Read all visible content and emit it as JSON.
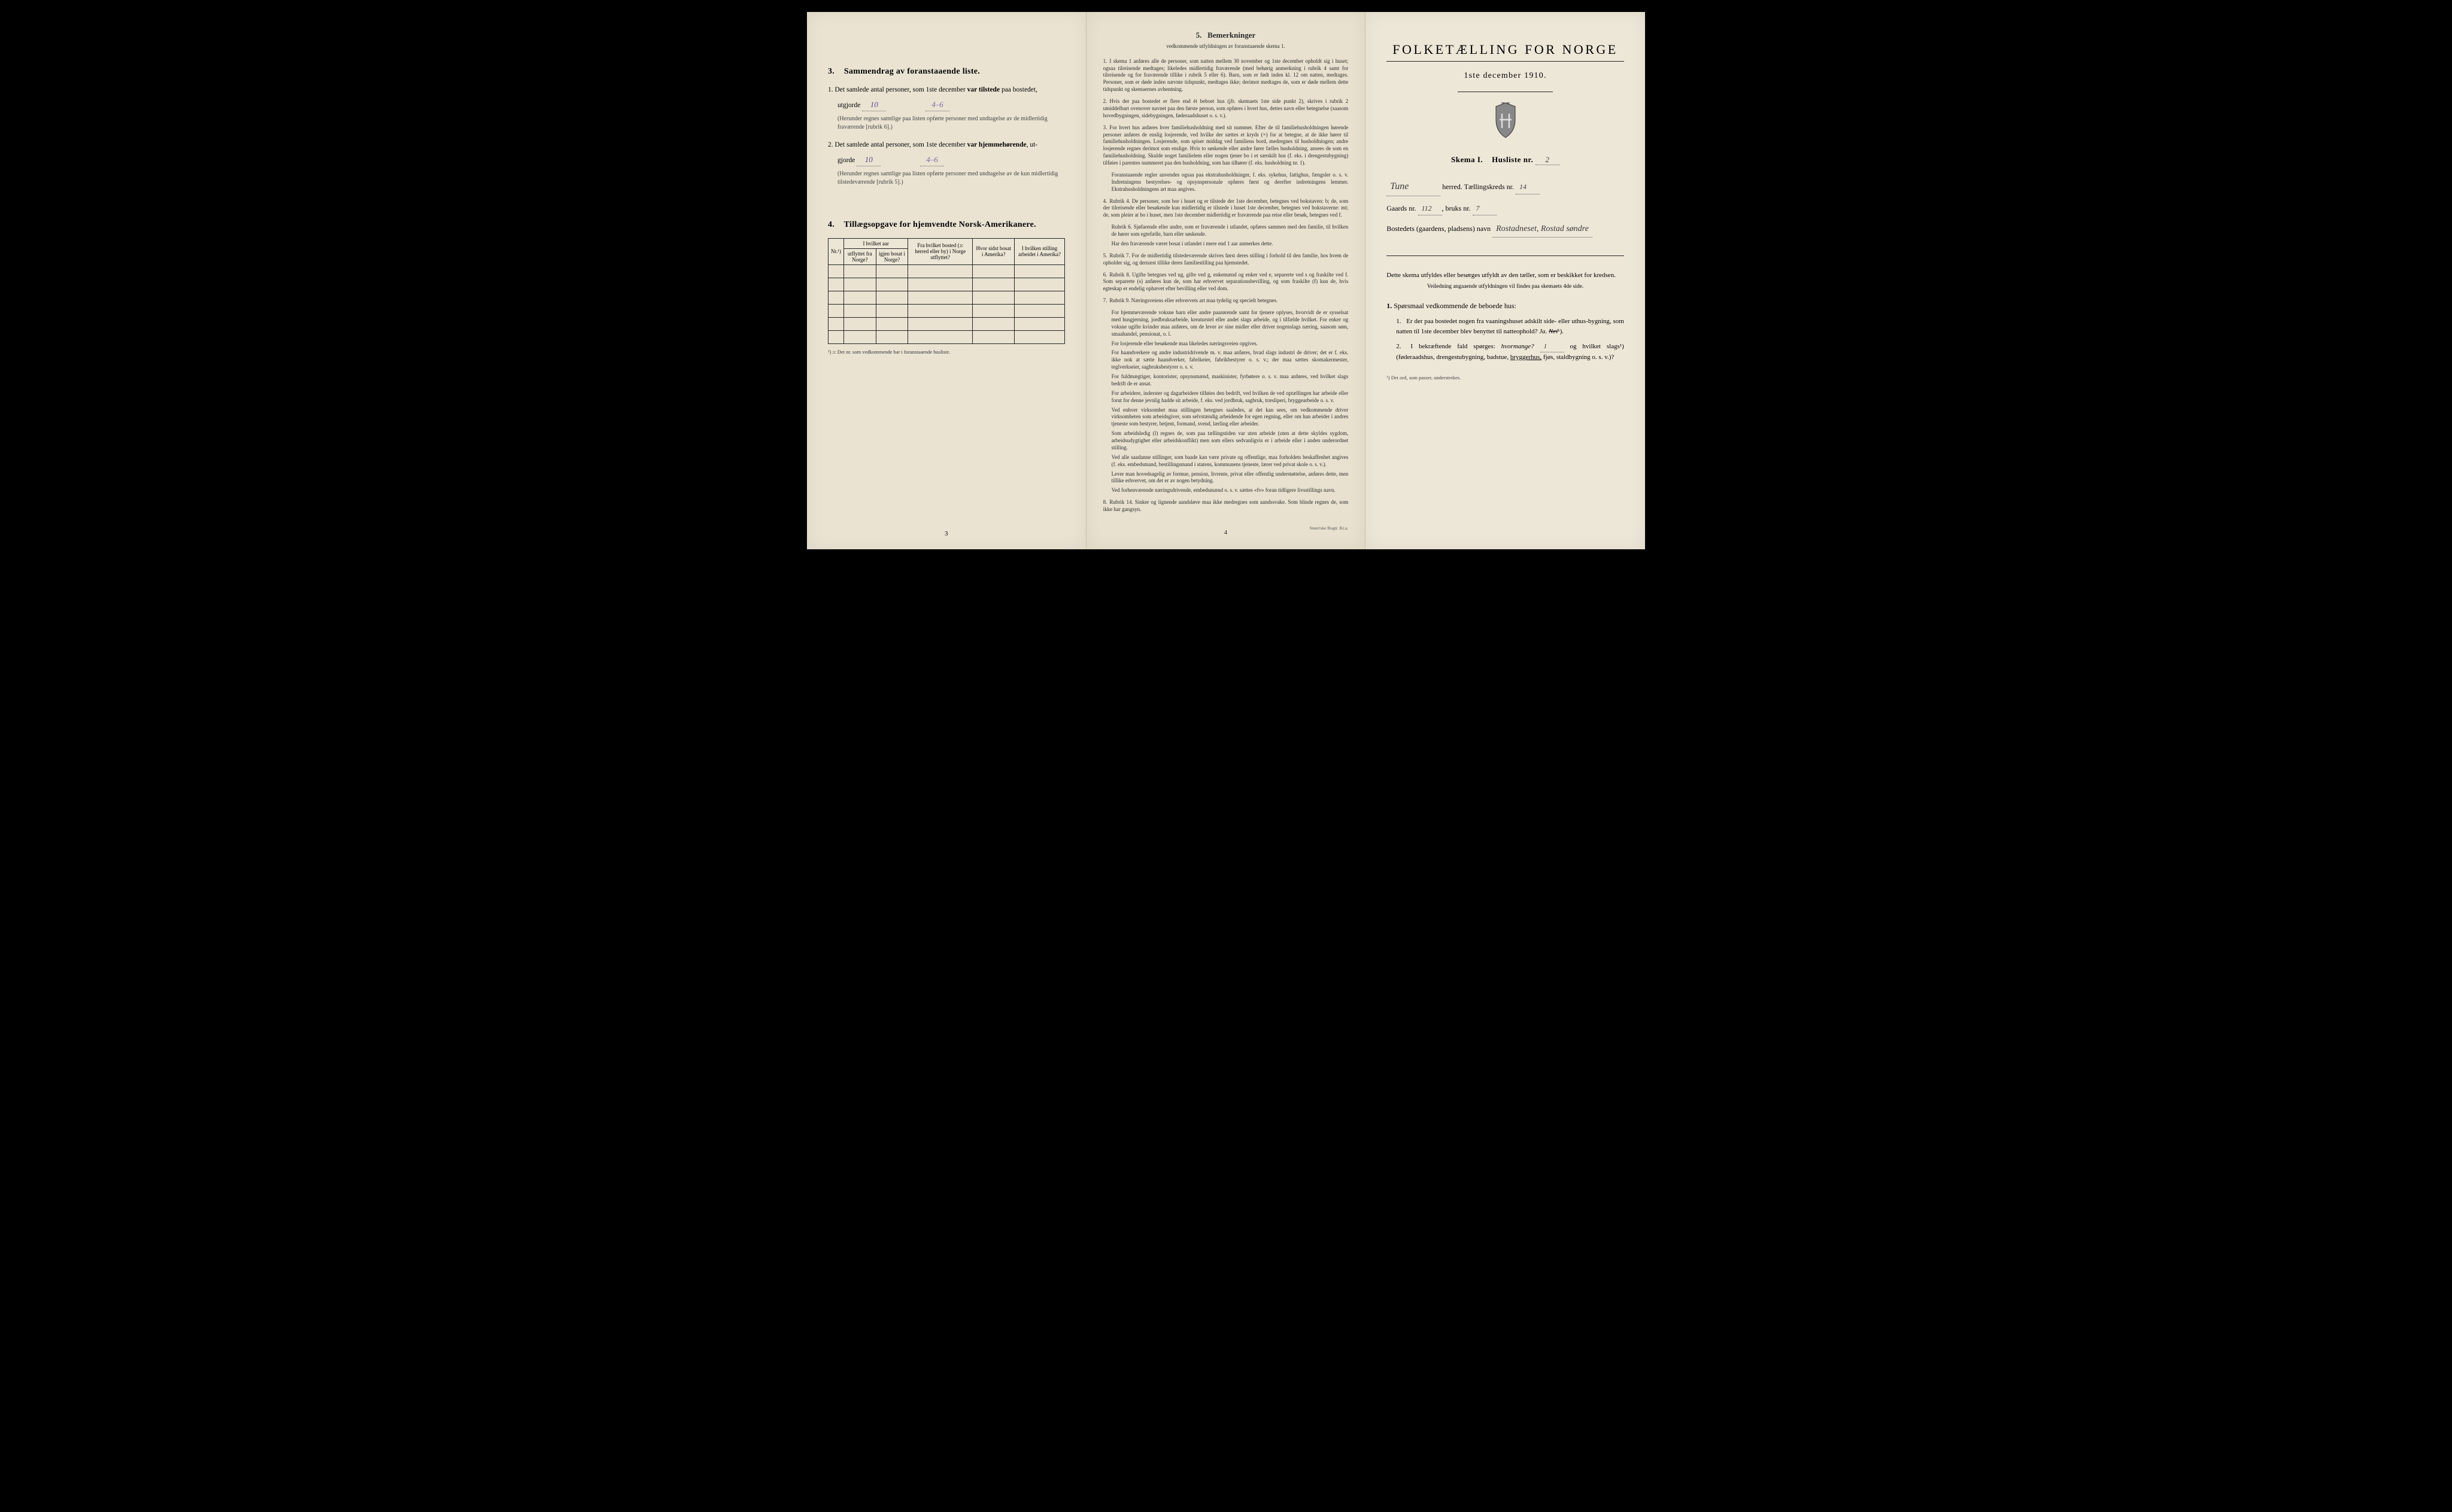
{
  "left": {
    "section3": {
      "num": "3.",
      "title": "Sammendrag av foranstaaende liste.",
      "item1_prefix": "1.  Det samlede antal personer, som 1ste december",
      "item1_bold": "var tilstede",
      "item1_suffix": "paa bostedet,",
      "utgjorde_label": "utgjorde",
      "value1": "10",
      "value1b": "4–6",
      "paren1": "(Herunder regnes samtlige paa listen opførte personer med undtagelse av de midlertidig fraværende [rubrik 6].)",
      "item2_prefix": "2.  Det samlede antal personer, som 1ste december",
      "item2_bold": "var hjemmehørende",
      "item2_suffix": ", ut-",
      "utgjorde_label2": "gjorde",
      "value2": "10",
      "value2b": "4–6",
      "paren2": "(Herunder regnes samtlige paa listen opførte personer med undtagelse av de kun midlertidig tilstedeværende [rubrik 5].)"
    },
    "section4": {
      "num": "4.",
      "title": "Tillægsopgave for hjemvendte Norsk-Amerikanere.",
      "th_nr": "Nr.¹)",
      "th_group": "I hvilket aar",
      "th_utflyttet": "utflyttet fra Norge?",
      "th_igjen": "igjen bosat i Norge?",
      "th_bosted": "Fra hvilket bosted (ɔ: herred eller by) i Norge utflyttet?",
      "th_sidst": "Hvor sidst bosat i Amerika?",
      "th_stilling": "I hvilken stilling arbeidet i Amerika?",
      "footnote": "¹) ɔ: Det nr. som vedkommende har i foranstaaende husliste.",
      "row_count": 6
    },
    "pagenum": "3"
  },
  "middle": {
    "title_num": "5.",
    "title": "Bemerkninger",
    "subtitle": "vedkommende utfyldningen av foranstaaende skema 1.",
    "items": [
      "I skema 1 anføres alle de personer, som natten mellem 30 november og 1ste december opholdt sig i huset; ogsaa tilreisende medtages; likeledes midlertidig fraværende (med behørig anmerkning i rubrik 4 samt for tilreisende og for fraværende tillike i rubrik 5 eller 6). Barn, som er født inden kl. 12 om natten, medtages. Personer, som er døde inden nævnte tidspunkt, medtages ikke; derimot medtages de, som er døde mellem dette tidspunkt og skemaernes avhentning.",
      "Hvis der paa bostedet er flere end ét beboet hus (jfr. skemaets 1ste side punkt 2), skrives i rubrik 2 umiddelbart ovenover navnet paa den første person, som opføres i hvert hus, dettes navn eller betegnelse (saasom hovedbygningen, sidebygningen, føderaadshuset o. s. v.).",
      "For hvert hus anføres hver familiehusholdning med sit nummer. Efter de til familiehusholdningen hørende personer anføres de enslig losjerende, ved hvilke der sættes et kryds (×) for at betegne, at de ikke hører til familiehusholdningen. Losjerende, som spiser middag ved familiens bord, medregnes til husholdningen; andre losjerende regnes derimot som enslige. Hvis to søskende eller andre fører fælles husholdning, ansees de som en familiehusholdning. Skulde noget familielem eller nogen tjener bo i et særskilt hus (f. eks. i drengestubygning) tilføies i parentes nummeret paa den husholdning, som han tilhører (f. eks. husholdning nr. 1).",
      "Rubrik 4. De personer, som bor i huset og er tilstede der 1ste december, betegnes ved bokstaven: b; de, som der tilreisende eller besøkende kun midlertidig er tilstede i huset 1ste december, betegnes ved bokstaverne: mt; de, som pleier at bo i huset, men 1ste december midlertidig er fraværende paa reise eller besøk, betegnes ved f.",
      "Rubrik 7. For de midlertidig tilstedeværende skrives først deres stilling i forhold til den familie, hos hvem de opholder sig, og dernæst tillike deres familiestilling paa hjemstedet.",
      "Rubrik 8. Ugifte betegnes ved ug, gifte ved g, enkemænd og enker ved e, separerte ved s og fraskilte ved f. Som separerte (s) anføres kun de, som har erhvervet separationsbevilling, og som fraskilte (f) kun de, hvis egteskap er endelig ophævet efter bevilling eller ved dom.",
      "Rubrik 9. Næringsveiens eller erhvervets art maa tydelig og specielt betegnes.",
      "Rubrik 14. Sinker og lignende aandsløve maa ikke medregnes som aandssvake. Som blinde regnes de, som ikke har gangsyn."
    ],
    "sub3": "Foranstaaende regler anvendes ogsaa paa ekstrahusholdninger, f. eks. sykehus, fattighus, fængsler o. s. v. Indretningens bestyrelses- og opsynspersonale opføres først og derefter indretningens lemmer. Ekstrahusholdningens art maa angives.",
    "sub4a": "Rubrik 6. Sjøfarende eller andre, som er fraværende i utlandet, opføres sammen med den familie, til hvilken de hører som egtefælle, barn eller søskende.",
    "sub4b": "Har den fraværende været bosat i utlandet i mere end 1 aar anmerkes dette.",
    "sub7a": "For hjemmeværende voksne barn eller andre paarørende samt for tjenere oplyses, hvorvidt de er sysselsat med husgjerning, jordbruksarbeide, kreaturstel eller andet slags arbeide, og i tilfælde hvilket. For enker og voksne ugifte kvinder maa anføres, om de lever av sine midler eller driver nogenslags næring, saasom søm, smaahandel, pensionat, o. l.",
    "sub7b": "For losjerende eller besøkende maa likeledes næringsveien opgives.",
    "sub7c": "For haandverkere og andre industridrivende m. v. maa anføres, hvad slags industri de driver; det er f. eks. ikke nok at sætte haandverker, fabrikeier, fabrikbestyrer o. s. v.; der maa sættes skomakermester, teglverkseier, sagbruksbestyrer o. s. v.",
    "sub7d": "For fuldmægtiger, kontorister, opsynsmænd, maskinister, fyrbøtere o. s. v. maa anføres, ved hvilket slags bedrift de er ansat.",
    "sub7e": "For arbeidere, inderster og dagarbeidere tilføies den bedrift, ved hvilken de ved optællingen har arbeide eller forut for denne jevnlig hadde sit arbeide, f. eks. ved jordbruk, sagbruk, træsliperi, bryggearbeide o. s. v.",
    "sub7f": "Ved enhver virksomhet maa stillingen betegnes saaledes, at det kan sees, om vedkommende driver virksomheten som arbeidsgiver, som selvstændig arbeidende for egen regning, eller om han arbeider i andres tjeneste som bestyrer, betjent, formand, svend, lærling eller arbeider.",
    "sub7g": "Som arbeidsledig (l) regnes de, som paa tællingstiden var uten arbeide (uten at dette skyldes sygdom, arbeidsudygtighet eller arbeidskonflikt) men som ellers sedvanligvis er i arbeide eller i anden underordnet stilling.",
    "sub7h": "Ved alle saadanne stillinger, som baade kan være private og offentlige, maa forholdets beskaffenhet angives (f. eks. embedsmand, bestillingsmand i statens, kommunens tjeneste, lærer ved privat skole o. s. v.).",
    "sub7i": "Lever man hovedsagelig av formue, pension, livrente, privat eller offentlig understøttelse, anføres dette, men tillike erhvervet, om det er av nogen betydning.",
    "sub7j": "Ved forhenværende næringsdrivende, embedsmænd o. s. v. sættes «fv» foran tidligere livsstillings navn.",
    "pagenum": "4",
    "printer": "Steen'ske Bogtr. Kr.a."
  },
  "right": {
    "title": "FOLKETÆLLING FOR NORGE",
    "date": "1ste december 1910.",
    "skema_left": "Skema I.",
    "skema_right": "Husliste nr.",
    "husliste_nr": "2",
    "herred_value": "Tune",
    "herred_label": "herred.   Tællingskreds nr.",
    "kreds_nr": "14",
    "gaard_label": "Gaards nr.",
    "gaard_nr": "112",
    "bruks_label": "bruks nr.",
    "bruks_nr": "7",
    "bosted_label": "Bostedets (gaardens, pladsens) navn",
    "bosted_value": "Rostadneset, Rostad søndre",
    "instruct": "Dette skema utfyldes eller besørges utfyldt av den tæller, som er beskikket for kredsen.",
    "instruct_sub": "Veiledning angaaende utfyldningen vil findes paa skemaets 4de side.",
    "q_head_num": "1.",
    "q_head": "Spørsmaal vedkommende de beboede hus:",
    "q1_num": "1.",
    "q1_text_a": "Er der paa bostedet nogen fra vaaningshuset adskilt side- eller uthus-bygning, som natten til 1ste december blev benyttet til natteophold?",
    "q1_ja": "Ja.",
    "q1_nei": "Nei",
    "q1_sup": "¹).",
    "q2_num": "2.",
    "q2_text_a": "I bekræftende fald spørges:",
    "q2_hvormange": "hvormange?",
    "q2_hvormange_val": "1",
    "q2_text_b": "og hvilket slags¹) (føderaadshus, drengestubygning, badstue,",
    "q2_underline": "bryggerhus,",
    "q2_text_c": "fjøs, staldbygning o. s. v.)?",
    "footnote": "¹) Det ord, som passer, understrekes."
  },
  "colors": {
    "paper": "#ece6d6",
    "ink": "#222222",
    "handwriting": "#4a3a6a"
  }
}
